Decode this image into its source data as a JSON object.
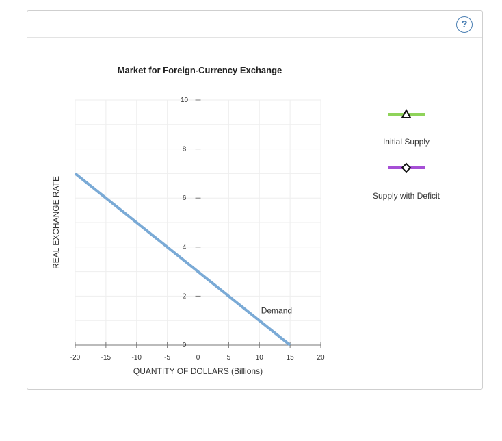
{
  "help": {
    "icon": "question-icon",
    "label": "?"
  },
  "legend": [
    {
      "label": "Initial Supply",
      "color": "#8fd35a",
      "marker": "triangle"
    },
    {
      "label": "Supply with Deficit",
      "color": "#a64fd6",
      "marker": "diamond"
    }
  ],
  "chart_data": {
    "type": "line",
    "title": "Market for Foreign-Currency Exchange",
    "xlabel": "QUANTITY OF DOLLARS (Billions)",
    "ylabel": "REAL EXCHANGE RATE",
    "xlim": [
      -20,
      20
    ],
    "ylim": [
      0,
      10
    ],
    "x_ticks": [
      -20,
      -15,
      -10,
      -5,
      0,
      5,
      10,
      15,
      20
    ],
    "y_ticks": [
      0,
      2,
      4,
      6,
      8,
      10
    ],
    "grid": true,
    "series": [
      {
        "name": "Demand",
        "color": "#7aaad6",
        "x": [
          -20,
          15
        ],
        "y": [
          7,
          0
        ]
      }
    ]
  }
}
